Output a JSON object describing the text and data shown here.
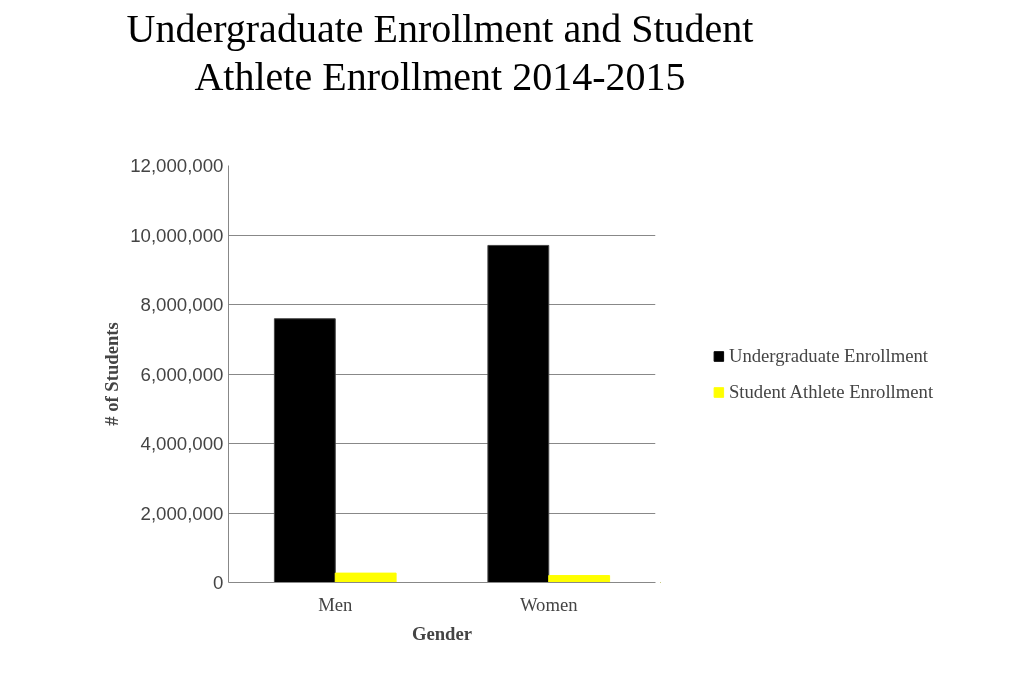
{
  "chart_data": {
    "type": "bar",
    "title": "Undergraduate Enrollment and Student Athlete Enrollment 2014-2015",
    "xlabel": "Gender",
    "ylabel": "# of Students",
    "categories": [
      "Men",
      "Women"
    ],
    "series": [
      {
        "name": "Undergraduate Enrollment",
        "color": "#000000",
        "values": [
          7590000,
          9700000
        ]
      },
      {
        "name": "Student Athlete Enrollment",
        "color": "#ffff00",
        "values": [
          270000,
          200000
        ]
      }
    ],
    "ylim": [
      0,
      12000000
    ],
    "yticks": [
      {
        "value": 0,
        "label": "0"
      },
      {
        "value": 2000000,
        "label": "2,000,000"
      },
      {
        "value": 4000000,
        "label": "4,000,000"
      },
      {
        "value": 6000000,
        "label": "6,000,000"
      },
      {
        "value": 8000000,
        "label": "8,000,000"
      },
      {
        "value": 10000000,
        "label": "10,000,000"
      },
      {
        "value": 12000000,
        "label": "12,000,000"
      }
    ],
    "grid": "y",
    "legend": "right"
  }
}
